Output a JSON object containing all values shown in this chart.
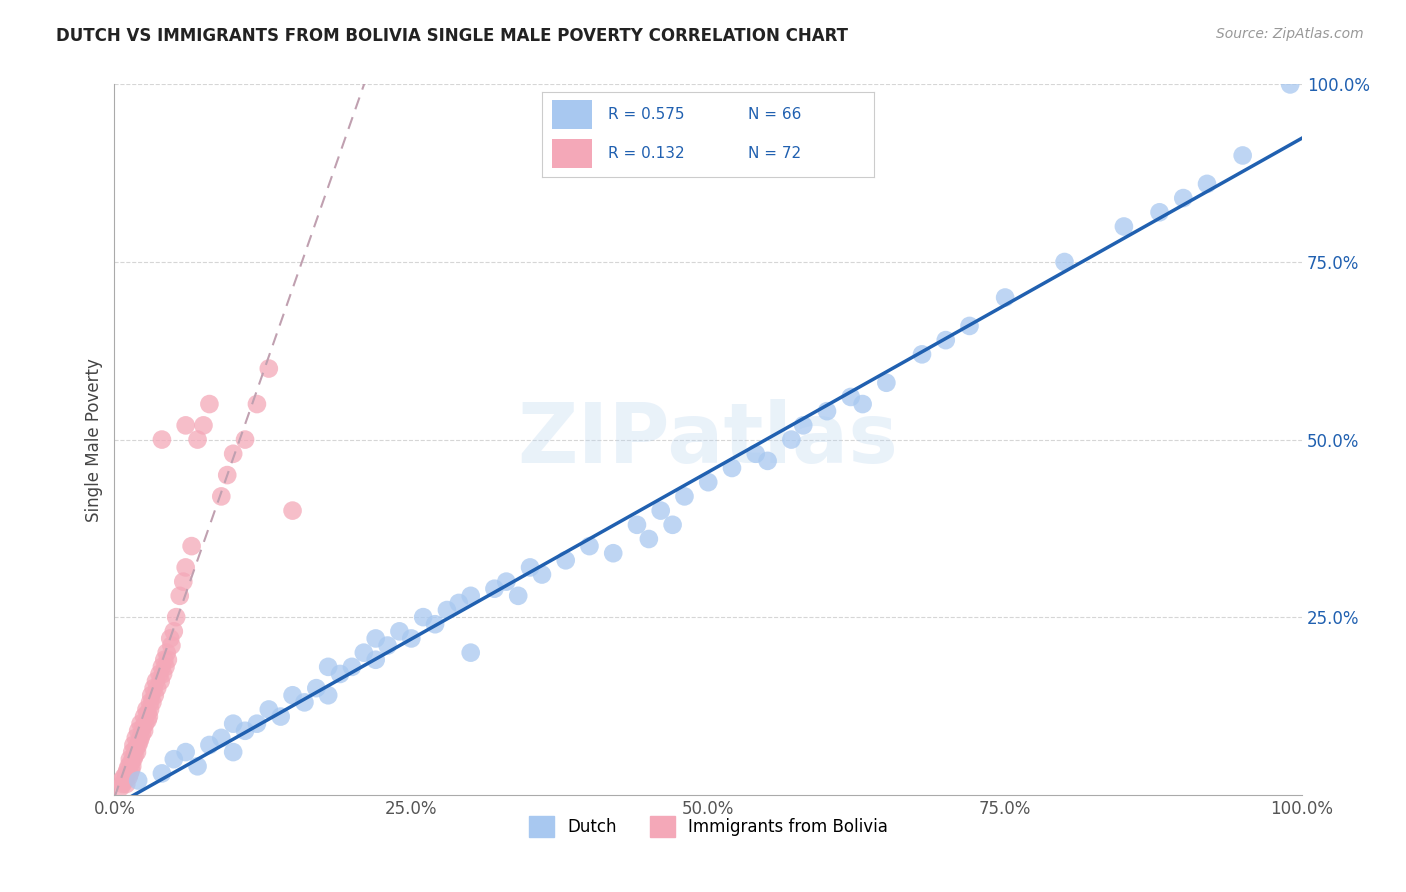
{
  "title": "DUTCH VS IMMIGRANTS FROM BOLIVIA SINGLE MALE POVERTY CORRELATION CHART",
  "source": "Source: ZipAtlas.com",
  "ylabel": "Single Male Poverty",
  "watermark": "ZIPatlas",
  "legend_dutch": "Dutch",
  "legend_bolivia": "Immigrants from Bolivia",
  "R_dutch": 0.575,
  "N_dutch": 66,
  "R_bolivia": 0.132,
  "N_bolivia": 72,
  "xlim": [
    0.0,
    1.0
  ],
  "ylim": [
    0.0,
    1.0
  ],
  "xtick_labels": [
    "0.0%",
    "25.0%",
    "50.0%",
    "75.0%",
    "100.0%"
  ],
  "xtick_vals": [
    0.0,
    0.25,
    0.5,
    0.75,
    1.0
  ],
  "ytick_labels": [
    "25.0%",
    "50.0%",
    "75.0%",
    "100.0%"
  ],
  "ytick_vals": [
    0.25,
    0.5,
    0.75,
    1.0
  ],
  "color_dutch": "#A8C8F0",
  "color_bolivia": "#F4A8B8",
  "line_color_dutch": "#2060B0",
  "line_color_bolivia": "#E06080",
  "background_color": "#FFFFFF",
  "dutch_x": [
    0.02,
    0.04,
    0.05,
    0.06,
    0.07,
    0.08,
    0.09,
    0.1,
    0.1,
    0.11,
    0.12,
    0.13,
    0.14,
    0.15,
    0.16,
    0.17,
    0.18,
    0.18,
    0.19,
    0.2,
    0.21,
    0.22,
    0.22,
    0.23,
    0.24,
    0.25,
    0.26,
    0.27,
    0.28,
    0.29,
    0.3,
    0.3,
    0.32,
    0.33,
    0.34,
    0.35,
    0.36,
    0.38,
    0.4,
    0.42,
    0.44,
    0.45,
    0.46,
    0.47,
    0.48,
    0.5,
    0.52,
    0.54,
    0.55,
    0.57,
    0.58,
    0.6,
    0.62,
    0.63,
    0.65,
    0.68,
    0.7,
    0.72,
    0.75,
    0.8,
    0.85,
    0.88,
    0.9,
    0.92,
    0.95,
    0.99
  ],
  "dutch_y": [
    0.02,
    0.03,
    0.05,
    0.06,
    0.04,
    0.07,
    0.08,
    0.06,
    0.1,
    0.09,
    0.1,
    0.12,
    0.11,
    0.14,
    0.13,
    0.15,
    0.14,
    0.18,
    0.17,
    0.18,
    0.2,
    0.19,
    0.22,
    0.21,
    0.23,
    0.22,
    0.25,
    0.24,
    0.26,
    0.27,
    0.2,
    0.28,
    0.29,
    0.3,
    0.28,
    0.32,
    0.31,
    0.33,
    0.35,
    0.34,
    0.38,
    0.36,
    0.4,
    0.38,
    0.42,
    0.44,
    0.46,
    0.48,
    0.47,
    0.5,
    0.52,
    0.54,
    0.56,
    0.55,
    0.58,
    0.62,
    0.64,
    0.66,
    0.7,
    0.75,
    0.8,
    0.82,
    0.84,
    0.86,
    0.9,
    1.0
  ],
  "bolivia_x": [
    0.005,
    0.006,
    0.007,
    0.008,
    0.009,
    0.01,
    0.01,
    0.011,
    0.012,
    0.012,
    0.013,
    0.013,
    0.014,
    0.014,
    0.015,
    0.015,
    0.016,
    0.016,
    0.017,
    0.018,
    0.018,
    0.019,
    0.02,
    0.02,
    0.021,
    0.022,
    0.022,
    0.023,
    0.024,
    0.025,
    0.025,
    0.026,
    0.027,
    0.028,
    0.028,
    0.029,
    0.03,
    0.03,
    0.031,
    0.032,
    0.033,
    0.034,
    0.035,
    0.036,
    0.038,
    0.039,
    0.04,
    0.041,
    0.042,
    0.043,
    0.044,
    0.045,
    0.047,
    0.048,
    0.05,
    0.052,
    0.055,
    0.058,
    0.06,
    0.065,
    0.07,
    0.075,
    0.08,
    0.09,
    0.095,
    0.1,
    0.11,
    0.12,
    0.13,
    0.15,
    0.04,
    0.06
  ],
  "bolivia_y": [
    0.01,
    0.02,
    0.015,
    0.025,
    0.02,
    0.03,
    0.015,
    0.035,
    0.025,
    0.04,
    0.03,
    0.05,
    0.035,
    0.045,
    0.04,
    0.06,
    0.05,
    0.07,
    0.055,
    0.065,
    0.08,
    0.06,
    0.07,
    0.09,
    0.075,
    0.08,
    0.1,
    0.085,
    0.095,
    0.09,
    0.11,
    0.1,
    0.12,
    0.105,
    0.115,
    0.11,
    0.13,
    0.12,
    0.14,
    0.13,
    0.15,
    0.14,
    0.16,
    0.15,
    0.17,
    0.16,
    0.18,
    0.17,
    0.19,
    0.18,
    0.2,
    0.19,
    0.22,
    0.21,
    0.23,
    0.25,
    0.28,
    0.3,
    0.32,
    0.35,
    0.5,
    0.52,
    0.55,
    0.42,
    0.45,
    0.48,
    0.5,
    0.55,
    0.6,
    0.4,
    0.5,
    0.52
  ]
}
